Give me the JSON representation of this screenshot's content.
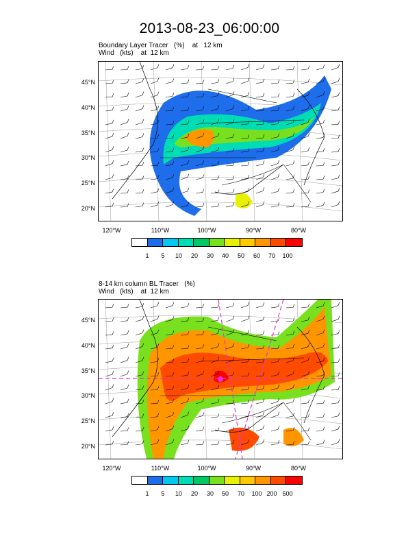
{
  "main_title": "2013-08-23_06:00:00",
  "panels": [
    {
      "title_line1": "Boundary Layer Tracer   (%)    at   12 km",
      "title_line2": "Wind   (kts)    at  12 km",
      "lat_labels": [
        "45°N",
        "40°N",
        "35°N",
        "30°N",
        "25°N",
        "20°N"
      ],
      "lon_labels": [
        "120°W",
        "110°W",
        "100°W",
        "90°W",
        "80°W"
      ],
      "colorbar_labels": [
        "1",
        "5",
        "10",
        "20",
        "30",
        "40",
        "50",
        "60",
        "70",
        "100"
      ]
    },
    {
      "title_line1": "8-14 km column BL Tracer   (%)",
      "title_line2": "Wind   (kts)    at  12 km",
      "lat_labels": [
        "45°N",
        "40°N",
        "35°N",
        "30°N",
        "25°N",
        "20°N"
      ],
      "lon_labels": [
        "120°W",
        "110°W",
        "100°W",
        "90°W",
        "80°W"
      ],
      "colorbar_labels": [
        "1",
        "5",
        "10",
        "20",
        "30",
        "50",
        "70",
        "100",
        "200",
        "500"
      ]
    }
  ],
  "colorbar_colors": [
    "#ffffff",
    "#1e6eeb",
    "#00c8f0",
    "#00dcb4",
    "#00c864",
    "#78e01e",
    "#e6f000",
    "#ffc800",
    "#ff9600",
    "#ff4b00",
    "#ff0000"
  ],
  "overlay_color": "#dd33dd"
}
